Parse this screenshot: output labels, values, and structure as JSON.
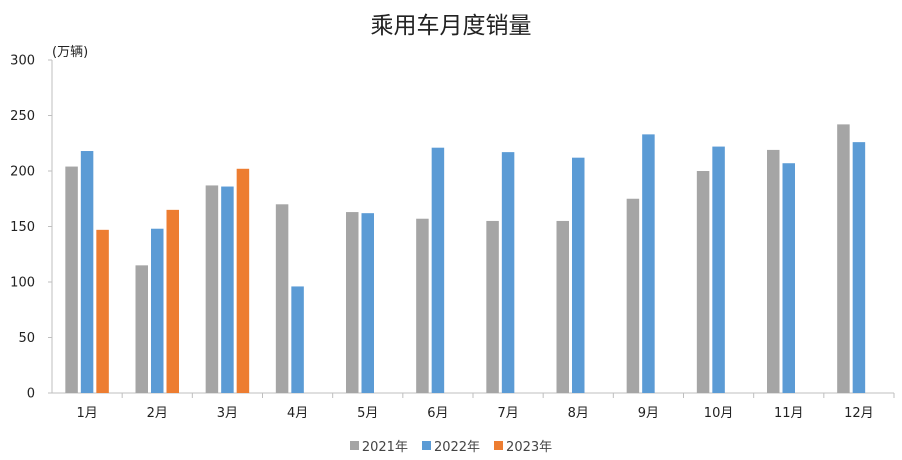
{
  "chart_data": {
    "type": "bar",
    "title": "乘用车月度销量",
    "ylabel": "(万辆)",
    "xlabel": "",
    "ylim": [
      0,
      300
    ],
    "yticks": [
      0,
      50,
      100,
      150,
      200,
      250,
      300
    ],
    "grid": false,
    "legend_position": "bottom",
    "categories": [
      "1月",
      "2月",
      "3月",
      "4月",
      "5月",
      "6月",
      "7月",
      "8月",
      "9月",
      "10月",
      "11月",
      "12月"
    ],
    "series": [
      {
        "name": "2021年",
        "color": "#A5A5A5",
        "values": [
          204,
          115,
          187,
          170,
          163,
          157,
          155,
          155,
          175,
          200,
          219,
          242
        ]
      },
      {
        "name": "2022年",
        "color": "#5B9BD5",
        "values": [
          218,
          148,
          186,
          96,
          162,
          221,
          217,
          212,
          233,
          222,
          207,
          226
        ]
      },
      {
        "name": "2023年",
        "color": "#ED7D31",
        "values": [
          147,
          165,
          202,
          null,
          null,
          null,
          null,
          null,
          null,
          null,
          null,
          null
        ]
      }
    ]
  }
}
